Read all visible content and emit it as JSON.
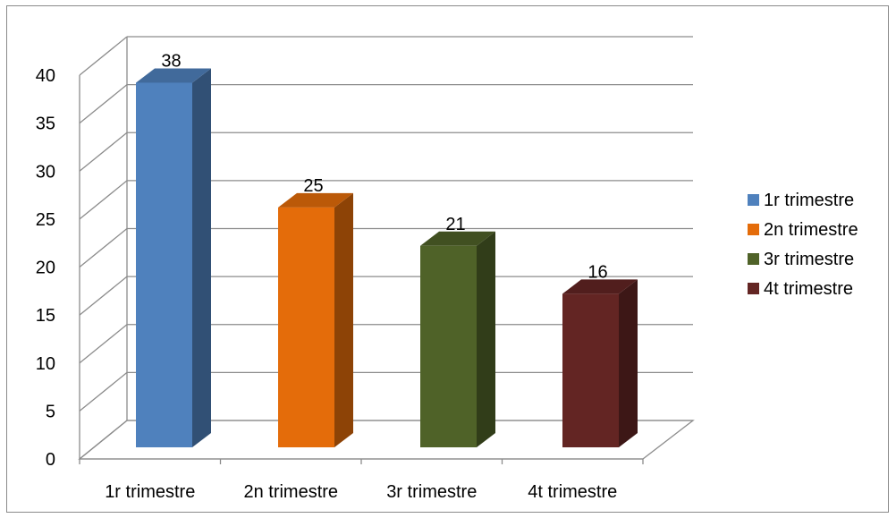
{
  "chart_data": {
    "type": "bar",
    "style": "3d-clustered-column",
    "categories": [
      "1r trimestre",
      "2n trimestre",
      "3r trimestre",
      "4t trimestre"
    ],
    "values": [
      38,
      25,
      21,
      16
    ],
    "series": [
      {
        "name": "1r trimestre",
        "value": 38,
        "color": "#4F81BD"
      },
      {
        "name": "2n trimestre",
        "value": 25,
        "color": "#E46C0A"
      },
      {
        "name": "3r trimestre",
        "value": 21,
        "color": "#4F6228"
      },
      {
        "name": "4t trimestre",
        "value": 16,
        "color": "#632523"
      }
    ],
    "title": "",
    "xlabel": "",
    "ylabel": "",
    "ylim": [
      0,
      40
    ],
    "yticks": [
      0,
      5,
      10,
      15,
      20,
      25,
      30,
      35,
      40
    ],
    "grid": true,
    "legend_position": "right",
    "data_labels": [
      "38",
      "25",
      "21",
      "16"
    ]
  }
}
